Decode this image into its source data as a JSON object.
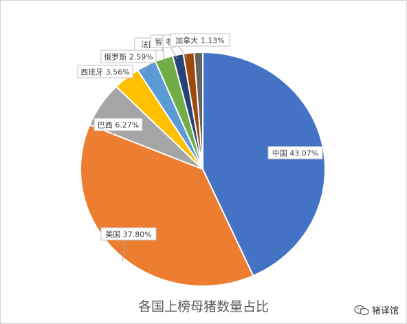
{
  "chart_data": {
    "type": "pie",
    "title": "各国上榜母猪数量占比",
    "slices": [
      {
        "label": "中国",
        "value": 43.07,
        "display": "43.07%",
        "color": "#4472C4"
      },
      {
        "label": "美国",
        "value": 37.8,
        "display": "37.80%",
        "color": "#ED7D31"
      },
      {
        "label": "巴西",
        "value": 6.27,
        "display": "6.27%",
        "color": "#A5A5A5"
      },
      {
        "label": "西班牙",
        "value": 3.56,
        "display": "3.56%",
        "color": "#FFC000"
      },
      {
        "label": "俄罗斯",
        "value": 2.59,
        "display": "2.59%",
        "color": "#5B9BD5"
      },
      {
        "label": "法国",
        "value": 2.36,
        "display": "",
        "color": "#70AD47"
      },
      {
        "label": "智利",
        "value": 1.41,
        "display": "",
        "color": "#264478"
      },
      {
        "label": "",
        "value": 1.41,
        "display": "",
        "color": "#9E480E"
      },
      {
        "label": "加拿大",
        "value": 1.13,
        "display": "1.13%",
        "color": "#636363"
      }
    ]
  },
  "labels": {
    "china": "中国 43.07%",
    "usa": "美国 37.80%",
    "brazil": "巴西 6.27%",
    "spain": "西班牙 3.56%",
    "russia": "俄罗斯 2.59%",
    "france": "法国",
    "chile": "智",
    "other": "老",
    "canada": "加拿大 1.13%"
  },
  "watermark": {
    "text": "猪译馆",
    "icon": "wechat-icon"
  }
}
